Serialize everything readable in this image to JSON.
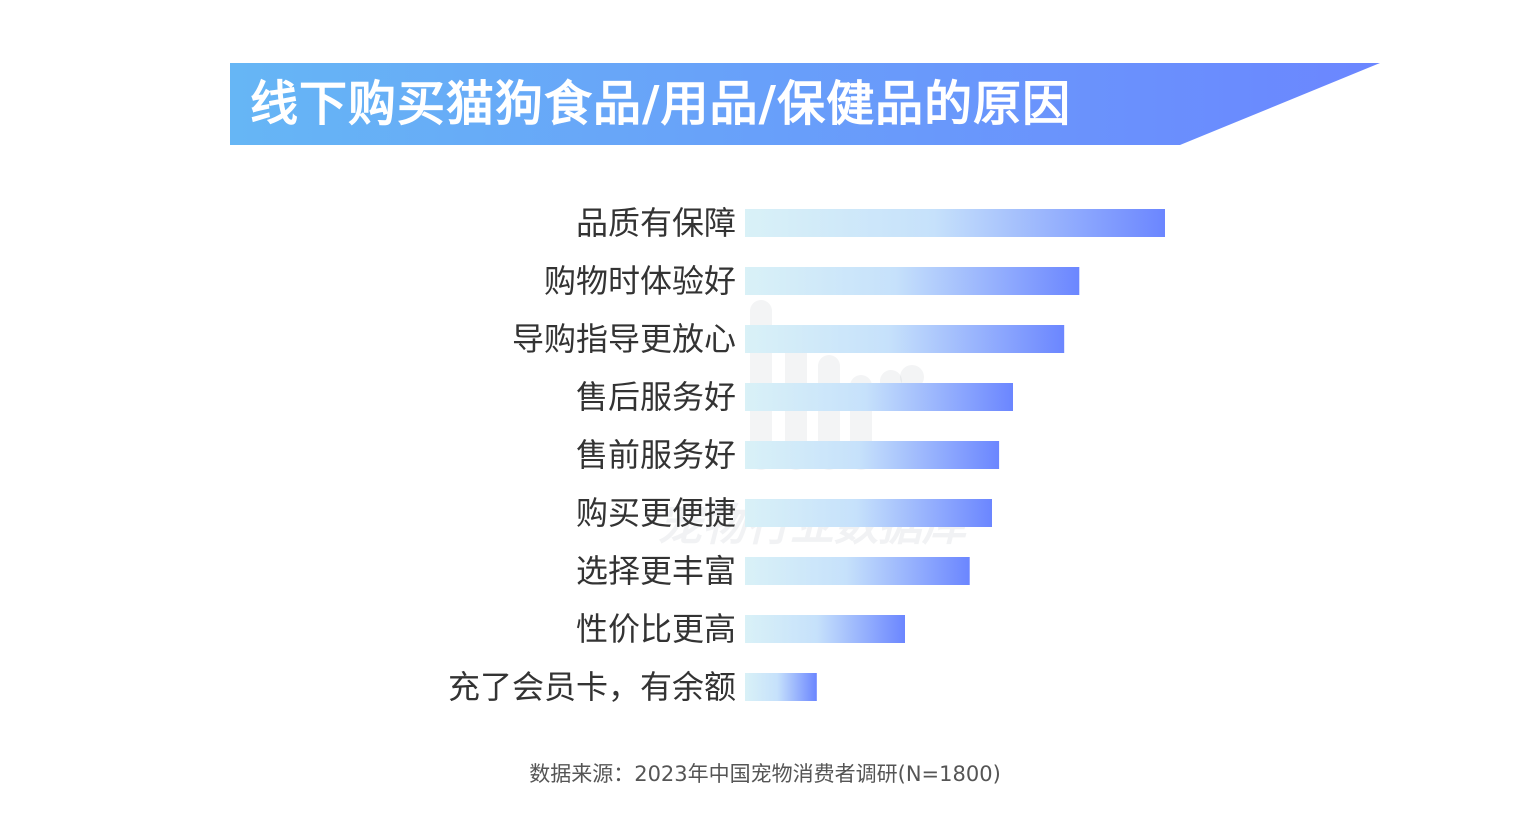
{
  "title": "线下购买猫狗食品/用品/保健品的原因",
  "source": "数据来源：2023年中国宠物消费者调研(N=1800)",
  "watermark_text": "宠物行业数据库",
  "colors": {
    "banner_start": "#66b6f5",
    "banner_end": "#6b86ff",
    "bar_start": "#d9f1f7",
    "bar_end": "#6b86ff",
    "label": "#333333",
    "source": "#555555"
  },
  "chart_data": {
    "type": "bar",
    "orientation": "horizontal",
    "title": "线下购买猫狗食品/用品/保健品的原因",
    "xlabel": "",
    "ylabel": "",
    "grid": false,
    "legend": "none",
    "categories": [
      "品质有保障",
      "购物时体验好",
      "导购指导更放心",
      "售后服务好",
      "售前服务好",
      "购买更便捷",
      "选择更丰富",
      "性价比更高",
      "充了会员卡，有余额"
    ],
    "values": [
      100,
      79.6,
      76,
      63.8,
      60.5,
      58.8,
      53.5,
      38.1,
      17.1
    ]
  }
}
